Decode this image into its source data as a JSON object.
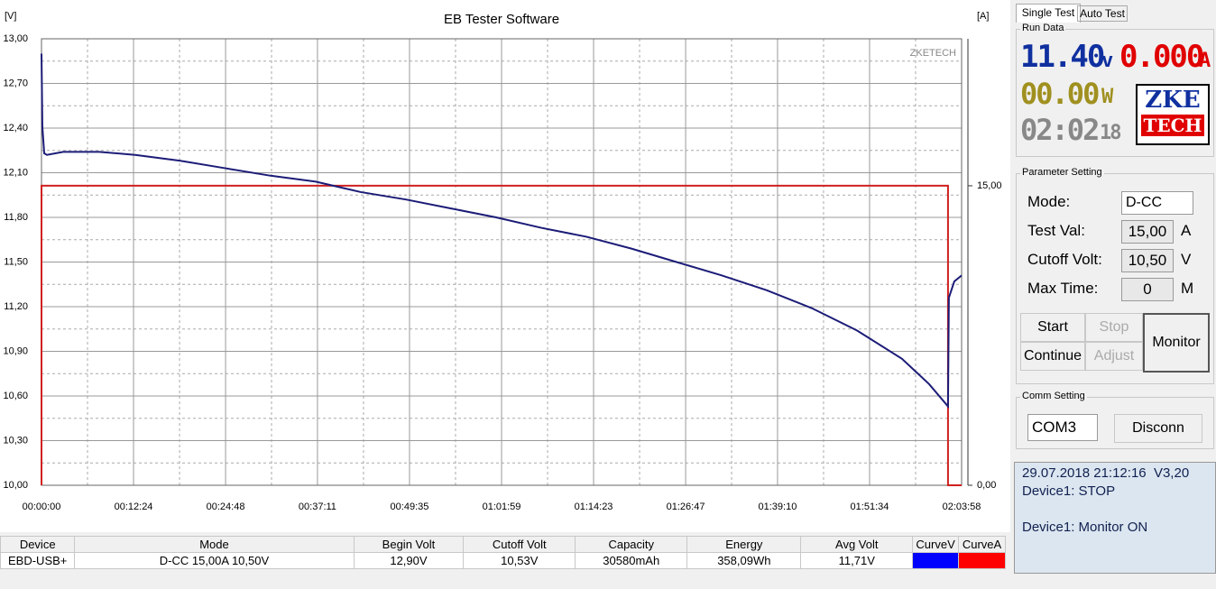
{
  "chart_data": {
    "type": "line",
    "title": "EB Tester Software",
    "y_label": "[V]",
    "y2_label": "[A]",
    "annotation": "ZKETECH",
    "xlim": [
      0,
      7438
    ],
    "xticks": [
      {
        "value": 0,
        "label": "00:00:00"
      },
      {
        "value": 744,
        "label": "00:12:24"
      },
      {
        "value": 1488,
        "label": "00:24:48"
      },
      {
        "value": 2231,
        "label": "00:37:11"
      },
      {
        "value": 2975,
        "label": "00:49:35"
      },
      {
        "value": 3719,
        "label": "01:01:59"
      },
      {
        "value": 4463,
        "label": "01:14:23"
      },
      {
        "value": 5207,
        "label": "01:26:47"
      },
      {
        "value": 5950,
        "label": "01:39:10"
      },
      {
        "value": 6694,
        "label": "01:51:34"
      },
      {
        "value": 7438,
        "label": "02:03:58"
      }
    ],
    "ylim": [
      10,
      13
    ],
    "yticks": [
      {
        "value": 10,
        "label": "10,00"
      },
      {
        "value": 10.3,
        "label": "10,30"
      },
      {
        "value": 10.6,
        "label": "10,60"
      },
      {
        "value": 10.9,
        "label": "10,90"
      },
      {
        "value": 11.2,
        "label": "11,20"
      },
      {
        "value": 11.5,
        "label": "11,50"
      },
      {
        "value": 11.8,
        "label": "11,80"
      },
      {
        "value": 12.1,
        "label": "12,10"
      },
      {
        "value": 12.4,
        "label": "12,40"
      },
      {
        "value": 12.7,
        "label": "12,70"
      },
      {
        "value": 13,
        "label": "13,00"
      }
    ],
    "y2lim": [
      0,
      22.36
    ],
    "y2ticks": [
      {
        "value": 0,
        "label": "0,00"
      },
      {
        "value": 15,
        "label": "15,00"
      }
    ],
    "grid": true,
    "series": [
      {
        "color": "#1c1c78",
        "x": [
          0,
          7,
          22,
          44,
          175,
          467,
          758,
          1123,
          1488,
          1852,
          2217,
          2581,
          2946,
          3311,
          3675,
          4040,
          4404,
          4769,
          5133,
          5498,
          5863,
          6227,
          6592,
          6956,
          7175,
          7328,
          7335,
          7379,
          7438
        ],
        "values": [
          12.9,
          12.41,
          12.23,
          12.22,
          12.24,
          12.24,
          12.22,
          12.18,
          12.13,
          12.08,
          12.04,
          11.97,
          11.92,
          11.86,
          11.8,
          11.73,
          11.67,
          11.59,
          11.5,
          11.41,
          11.31,
          11.19,
          11.04,
          10.85,
          10.68,
          10.53,
          11.26,
          11.37,
          11.41
        ]
      },
      {
        "color": "#d02020",
        "axis": "y2",
        "x": [
          0,
          0,
          7328,
          7328,
          7438
        ],
        "values": [
          0,
          15,
          15,
          0,
          0
        ]
      }
    ]
  },
  "table": {
    "headers": [
      "Device",
      "Mode",
      "Begin Volt",
      "Cutoff Volt",
      "Capacity",
      "Energy",
      "Avg Volt",
      "CurveV",
      "CurveA"
    ],
    "row": [
      "EBD-USB+",
      "D-CC 15,00A 10,50V",
      "12,90V",
      "10,53V",
      "30580mAh",
      "358,09Wh",
      "11,71V"
    ],
    "curve_colors": [
      "#0000ff",
      "#ff0000"
    ]
  },
  "panel": {
    "tabs": [
      "Single Test",
      "Auto Test"
    ],
    "run_data": {
      "title": "Run Data",
      "voltage": "11.40",
      "voltage_unit": "v",
      "current": "0.000",
      "current_unit": "A",
      "power": "00.00",
      "power_unit": "W",
      "time": "02:02",
      "time_seconds": "18",
      "logo_top": "ZKE",
      "logo_bottom": "TECH"
    },
    "parameters": {
      "title": "Parameter Setting",
      "mode_label": "Mode:",
      "mode": "D-CC",
      "test_val_label": "Test Val:",
      "test_val": "15,00",
      "test_val_unit": "A",
      "cutoff_label": "Cutoff Volt:",
      "cutoff": "10,50",
      "cutoff_unit": "V",
      "max_time_label": "Max Time:",
      "max_time": "0",
      "max_time_unit": "M"
    },
    "buttons": {
      "start": "Start",
      "stop": "Stop",
      "continue": "Continue",
      "adjust": "Adjust",
      "monitor": "Monitor"
    },
    "comm": {
      "title": "Comm Setting",
      "port": "COM3",
      "button": "Disconn"
    },
    "log": [
      "29.07.2018 21:12:16  V3,20",
      "Device1: STOP",
      "",
      "Device1: Monitor ON"
    ]
  }
}
